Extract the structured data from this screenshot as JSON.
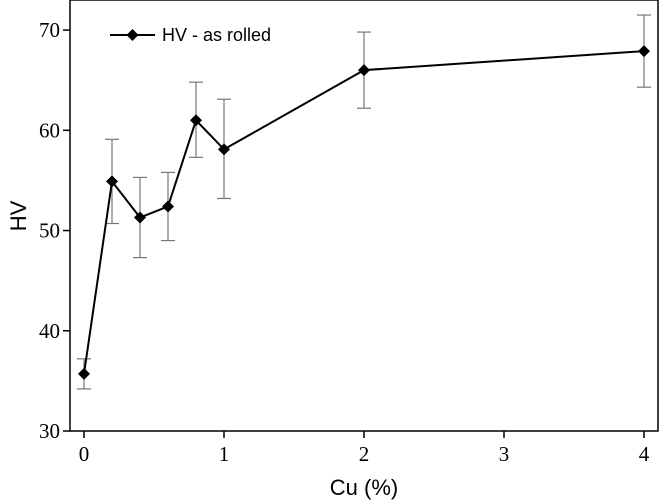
{
  "chart_data": {
    "type": "line",
    "xlabel": "Cu (%)",
    "ylabel": "HV",
    "xlim": [
      -0.1,
      4.1
    ],
    "ylim": [
      30,
      73
    ],
    "xticks": [
      "0",
      "1",
      "2",
      "3",
      "4"
    ],
    "yticks": [
      "30",
      "40",
      "50",
      "60",
      "70"
    ],
    "legend_position": "top-left",
    "grid": false,
    "series": [
      {
        "name": "HV - as rolled",
        "marker": "diamond",
        "color": "#000000",
        "x": [
          0,
          0.2,
          0.4,
          0.6,
          0.8,
          1,
          2,
          4
        ],
        "y": [
          35.7,
          54.9,
          51.3,
          52.4,
          61.0,
          58.1,
          66.0,
          67.9
        ],
        "error_upper": [
          37.2,
          59.1,
          55.3,
          55.8,
          64.8,
          63.1,
          69.8,
          71.5
        ],
        "error_lower": [
          34.2,
          50.7,
          47.3,
          49.0,
          57.3,
          53.2,
          62.2,
          64.3
        ]
      }
    ]
  }
}
